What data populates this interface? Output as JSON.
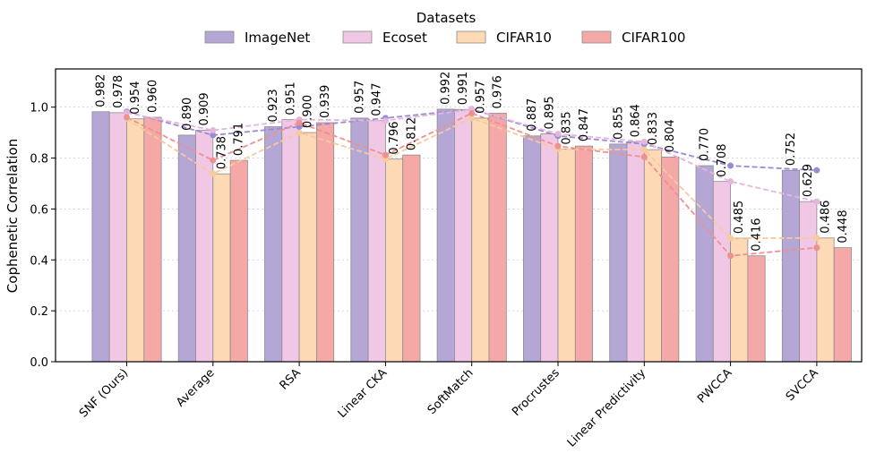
{
  "chart_data": {
    "type": "bar",
    "title": "",
    "xlabel": "",
    "ylabel": "Cophenetic Correlation",
    "ylim": [
      0,
      1.15
    ],
    "yticks": [
      0.0,
      0.2,
      0.4,
      0.6,
      0.8,
      1.0
    ],
    "ytick_labels": [
      "0.0",
      "0.2",
      "0.4",
      "0.6",
      "0.8",
      "1.0"
    ],
    "grid": "horizontal dotted",
    "legend_title": "Datasets",
    "legend_position": "top-center",
    "categories": [
      "SNF (Ours)",
      "Average",
      "RSA",
      "Linear CKA",
      "SoftMatch",
      "Procrustes",
      "Linear Predictivity",
      "PWCCA",
      "SVCCA"
    ],
    "series": [
      {
        "name": "ImageNet",
        "color": "#b4a7d6",
        "line_color": "#9b8bd6",
        "values": [
          0.982,
          0.89,
          0.923,
          0.957,
          0.992,
          0.887,
          0.855,
          0.77,
          0.752
        ],
        "labels": [
          "0.982",
          "0.890",
          "0.923",
          "0.957",
          "0.992",
          "0.887",
          "0.855",
          "0.770",
          "0.752"
        ]
      },
      {
        "name": "Ecoset",
        "color": "#f0c8e6",
        "line_color": "#e5b5dc",
        "values": [
          0.978,
          0.909,
          0.951,
          0.947,
          0.991,
          0.895,
          0.864,
          0.708,
          0.629
        ],
        "labels": [
          "0.978",
          "0.909",
          "0.951",
          "0.947",
          "0.991",
          "0.895",
          "0.864",
          "0.708",
          "0.629"
        ]
      },
      {
        "name": "CIFAR10",
        "color": "#fdd9b5",
        "line_color": "#f7c99b",
        "values": [
          0.954,
          0.738,
          0.9,
          0.796,
          0.957,
          0.835,
          0.833,
          0.485,
          0.486
        ],
        "labels": [
          "0.954",
          "0.738",
          "0.900",
          "0.796",
          "0.957",
          "0.835",
          "0.833",
          "0.485",
          "0.486"
        ]
      },
      {
        "name": "CIFAR100",
        "color": "#f5a8a8",
        "line_color": "#ef9090",
        "values": [
          0.96,
          0.791,
          0.939,
          0.812,
          0.976,
          0.847,
          0.804,
          0.416,
          0.448
        ],
        "labels": [
          "0.960",
          "0.791",
          "0.939",
          "0.812",
          "0.976",
          "0.847",
          "0.804",
          "0.416",
          "0.448"
        ]
      }
    ]
  }
}
